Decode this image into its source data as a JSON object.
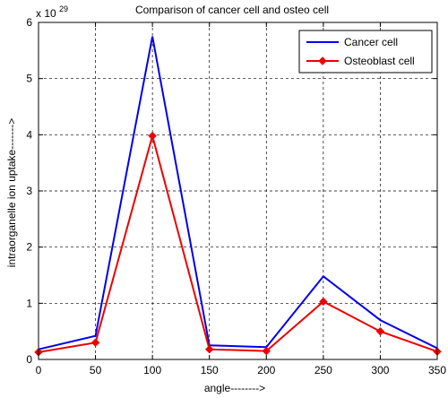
{
  "chart_data": {
    "type": "line",
    "title": "Comparison of cancer cell and osteo cell",
    "xlabel": "angle-------->",
    "ylabel": "intraorganelle ion uptake------->",
    "multiplier_base": "x 10",
    "multiplier_exponent": "29",
    "x": [
      0,
      50,
      100,
      150,
      200,
      250,
      300,
      350
    ],
    "xlim": [
      0,
      350
    ],
    "ylim": [
      0,
      6
    ],
    "xticks": [
      0,
      50,
      100,
      150,
      200,
      250,
      300,
      350
    ],
    "yticks": [
      0,
      1,
      2,
      3,
      4,
      5,
      6
    ],
    "grid": true,
    "legend_position": "top-right",
    "series": [
      {
        "name": "Cancer cell",
        "color": "#0000ee",
        "marker": "none",
        "values": [
          0.18,
          0.42,
          5.75,
          0.25,
          0.22,
          1.48,
          0.7,
          0.2
        ]
      },
      {
        "name": "Osteoblast cell",
        "color": "#ee0000",
        "marker": "diamond",
        "values": [
          0.13,
          0.3,
          3.98,
          0.18,
          0.15,
          1.03,
          0.5,
          0.14
        ]
      }
    ]
  }
}
